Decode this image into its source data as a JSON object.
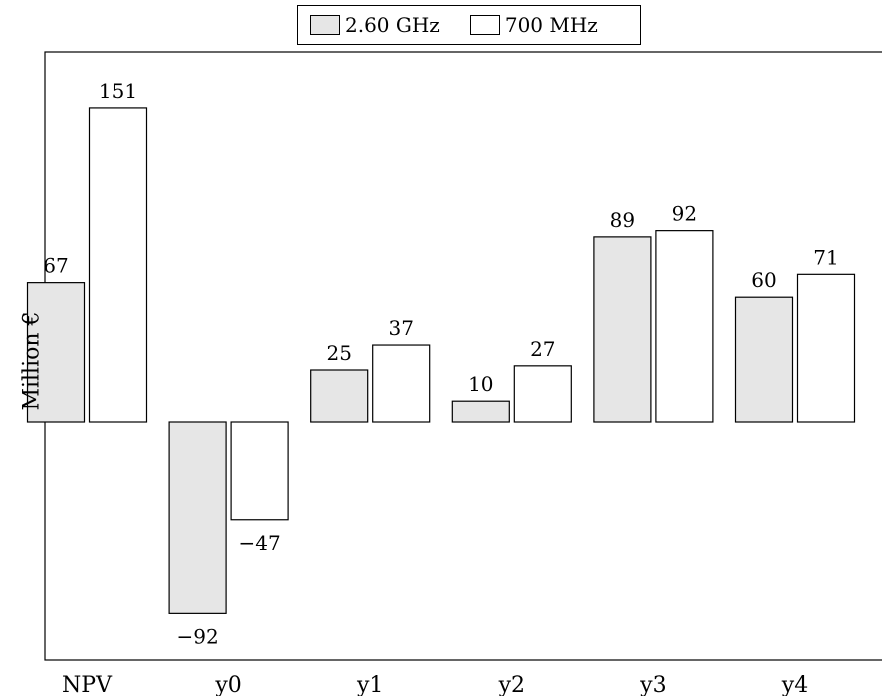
{
  "chart_data": {
    "type": "bar",
    "categories": [
      "NPV",
      "y0",
      "y1",
      "y2",
      "y3",
      "y4"
    ],
    "series": [
      {
        "name": "2.60 GHz",
        "values": [
          67,
          -92,
          25,
          10,
          89,
          60
        ]
      },
      {
        "name": "700 MHz",
        "values": [
          151,
          -47,
          37,
          27,
          92,
          71
        ]
      }
    ],
    "data_labels": [
      [
        "67",
        "−92",
        "25",
        "10",
        "89",
        "60"
      ],
      [
        "151",
        "−47",
        "37",
        "27",
        "92",
        "71"
      ]
    ],
    "ylabel": "Million €",
    "xlabel": "",
    "legend_position": "top-center",
    "grid": false,
    "colors": {
      "series_fill": [
        "#e6e6e6",
        "#ffffff"
      ],
      "stroke": "#000000"
    }
  }
}
